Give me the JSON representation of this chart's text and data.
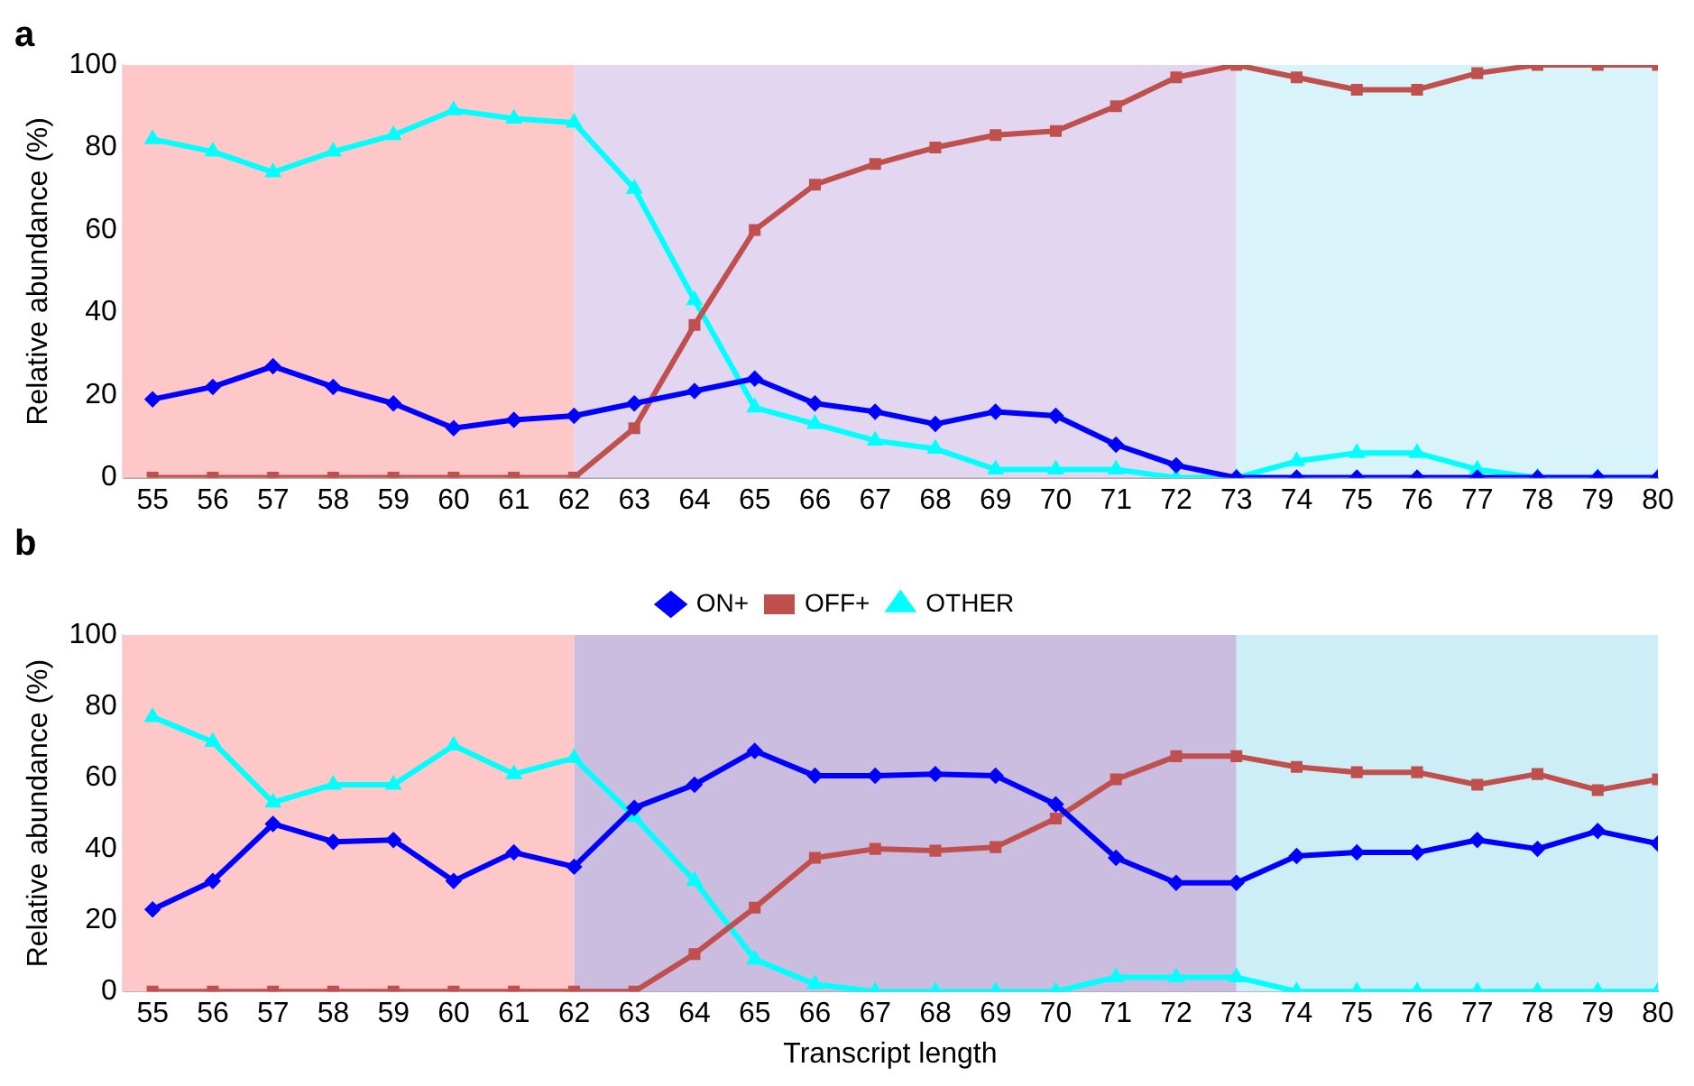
{
  "chart_data": [
    {
      "type": "line",
      "title": "a",
      "ylabel": "Relative abundance (%)",
      "x": [
        55,
        56,
        57,
        58,
        59,
        60,
        61,
        62,
        63,
        64,
        65,
        66,
        67,
        68,
        69,
        70,
        71,
        72,
        73,
        74,
        75,
        76,
        77,
        78,
        79,
        80
      ],
      "xlim": [
        54.5,
        80
      ],
      "xticks": [
        55,
        56,
        57,
        58,
        59,
        60,
        61,
        62,
        63,
        64,
        65,
        66,
        67,
        68,
        69,
        70,
        71,
        72,
        73,
        74,
        75,
        76,
        77,
        78,
        79,
        80
      ],
      "ylim": [
        0,
        100
      ],
      "yticks": [
        0,
        20,
        40,
        60,
        80,
        100
      ],
      "grid": false,
      "legend": false,
      "bands": [
        {
          "axis": "x",
          "from": 54.5,
          "to": 62,
          "color": "#ffc8c8"
        },
        {
          "axis": "x",
          "from": 62,
          "to": 73,
          "color": "#e2d6f0"
        },
        {
          "axis": "x",
          "from": 73,
          "to": 80,
          "color": "#d8f4fa"
        }
      ],
      "series": [
        {
          "color": "#0000ff",
          "marker": "diamond",
          "values": [
            19,
            22,
            27,
            22,
            18,
            12,
            14,
            15,
            18,
            21,
            24,
            18,
            16,
            13,
            16,
            15,
            8,
            3,
            0,
            0,
            0,
            0,
            0,
            0,
            0,
            0
          ]
        },
        {
          "color": "#c0504d",
          "marker": "square",
          "values": [
            0,
            0,
            0,
            0,
            0,
            0,
            0,
            0,
            12,
            37,
            60,
            71,
            76,
            80,
            83,
            84,
            90,
            97,
            100,
            97,
            94,
            94,
            98,
            100,
            100,
            100
          ]
        },
        {
          "color": "#00ffff",
          "marker": "triangle",
          "values": [
            82,
            79,
            74,
            79,
            83,
            89,
            87,
            86,
            70,
            43,
            17,
            13,
            9,
            7,
            2,
            2,
            2,
            0,
            0,
            4,
            6,
            6,
            2,
            0,
            0,
            0
          ]
        }
      ]
    },
    {
      "type": "line",
      "title": "b",
      "xlabel": "Transcript length",
      "ylabel": "Relative abundance (%)",
      "x": [
        55,
        56,
        57,
        58,
        59,
        60,
        61,
        62,
        63,
        64,
        65,
        66,
        67,
        68,
        69,
        70,
        71,
        72,
        73,
        74,
        75,
        76,
        77,
        78,
        79,
        80
      ],
      "xlim": [
        54.5,
        80
      ],
      "xticks": [
        55,
        56,
        57,
        58,
        59,
        60,
        61,
        62,
        63,
        64,
        65,
        66,
        67,
        68,
        69,
        70,
        71,
        72,
        73,
        74,
        75,
        76,
        77,
        78,
        79,
        80
      ],
      "ylim": [
        0,
        100
      ],
      "yticks": [
        0,
        20,
        40,
        60,
        80,
        100
      ],
      "grid": false,
      "legend": "top",
      "bands": [
        {
          "axis": "x",
          "from": 54.5,
          "to": 62,
          "color": "#ffc8c8"
        },
        {
          "axis": "x",
          "from": 62,
          "to": 73,
          "color": "#cbbde0"
        },
        {
          "axis": "x",
          "from": 73,
          "to": 80,
          "color": "#cdeef6"
        }
      ],
      "series": [
        {
          "name": "ON+",
          "color": "#0000ff",
          "marker": "diamond",
          "values": [
            23,
            31,
            47,
            42,
            42.5,
            31,
            39,
            35,
            51.5,
            58,
            67.5,
            60.5,
            60.5,
            61,
            60.5,
            52.5,
            37.5,
            30.5,
            30.5,
            38,
            39,
            39,
            42.5,
            40,
            45,
            41.5
          ]
        },
        {
          "name": "OFF+",
          "color": "#c0504d",
          "marker": "square",
          "values": [
            0,
            0,
            0,
            0,
            0,
            0,
            0,
            0,
            0,
            10.5,
            23.5,
            37.5,
            40,
            39.5,
            40.5,
            48.5,
            59.5,
            66,
            66,
            63,
            61.5,
            61.5,
            58,
            61,
            56.5,
            59.5
          ]
        },
        {
          "name": "OTHER",
          "color": "#00ffff",
          "marker": "triangle",
          "values": [
            77,
            70,
            53,
            58,
            58,
            69,
            61,
            65.5,
            49,
            31,
            9,
            2,
            0,
            0,
            0,
            0,
            4,
            4,
            4,
            0,
            0,
            0,
            0,
            0,
            0,
            0
          ]
        }
      ]
    }
  ]
}
